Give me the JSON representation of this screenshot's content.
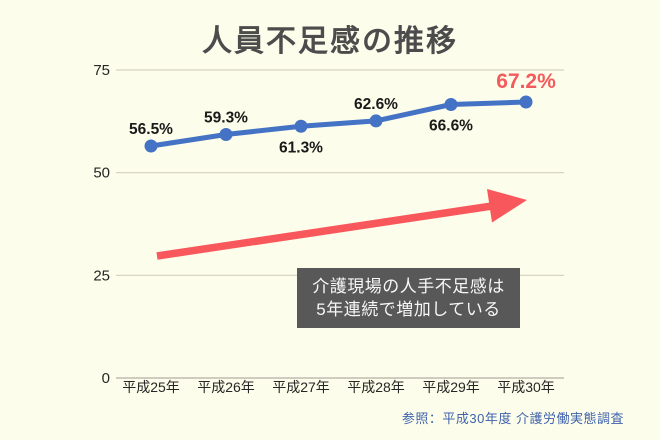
{
  "title": "人員不足感の推移",
  "annotation_box": {
    "line1": "介護現場の人手不足感は",
    "line2": "5年連続で増加している"
  },
  "source": "参照：平成30年度 介護労働実態調査",
  "colors": {
    "background": "#FDFDEB",
    "line": "#4472C4",
    "marker": "#4472C4",
    "arrow": "#F8585C",
    "highlight": "#F4595B",
    "annotation_bg": "#585858",
    "annotation_text": "#F7F7F7",
    "grid": "#D5D1C0",
    "axis_line": "#B3B0A2",
    "axis_text": "#262626",
    "label_text": "#1A1A1A",
    "title_text": "#4C4C4C",
    "source_text": "#3E63AC"
  },
  "chart_data": {
    "type": "line",
    "title": "人員不足感の推移",
    "categories": [
      "平成25年",
      "平成26年",
      "平成27年",
      "平成28年",
      "平成29年",
      "平成30年"
    ],
    "values": [
      56.5,
      59.3,
      61.3,
      62.6,
      66.6,
      67.2
    ],
    "labels": [
      "56.5%",
      "59.3%",
      "61.3%",
      "62.6%",
      "66.6%",
      "67.2%"
    ],
    "label_positions": [
      "above",
      "above",
      "below",
      "above",
      "below",
      "above"
    ],
    "highlight_index": 5,
    "xlabel": "",
    "ylabel": "",
    "ylim": [
      0,
      75
    ],
    "yticks": [
      0,
      25,
      50,
      75
    ],
    "grid": "horizontal",
    "legend": "none",
    "annotations": [
      "upward red trend arrow",
      "介護現場の人手不足感は5年連続で増加している"
    ]
  }
}
